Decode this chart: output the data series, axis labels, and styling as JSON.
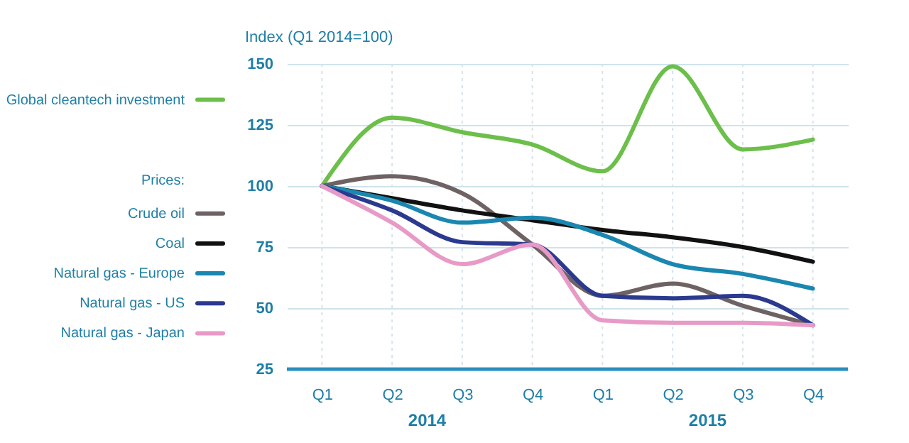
{
  "chart_data": {
    "type": "line",
    "ylabel": "Index (Q1 2014=100)",
    "legend_title": "Prices:",
    "categories": [
      "Q1",
      "Q2",
      "Q3",
      "Q4",
      "Q1",
      "Q2",
      "Q3",
      "Q4"
    ],
    "annotations": [
      "2014",
      "2015"
    ],
    "ylim": [
      25,
      150
    ],
    "yticks": [
      25,
      50,
      75,
      100,
      125,
      150
    ],
    "grid": true,
    "legend": "left",
    "line_style": "solid",
    "series": [
      {
        "name": "Global cleantech investment",
        "color": "#6cbf4a",
        "values": [
          100,
          128,
          122,
          117,
          106,
          149,
          115,
          119
        ]
      },
      {
        "name": "Crude oil",
        "color": "#6e6262",
        "values": [
          100,
          104,
          97,
          76,
          55,
          60,
          51,
          43
        ]
      },
      {
        "name": "Coal",
        "color": "#111111",
        "values": [
          100,
          95,
          90,
          86,
          82,
          79,
          75,
          69
        ]
      },
      {
        "name": "Natural gas - Europe",
        "color": "#1a87b0",
        "values": [
          100,
          94,
          85,
          87,
          80,
          68,
          64,
          58
        ]
      },
      {
        "name": "Natural gas - US",
        "color": "#2b3a8f",
        "values": [
          100,
          90,
          77,
          76,
          55,
          54,
          55,
          43
        ]
      },
      {
        "name": "Natural gas - Japan",
        "color": "#e89ac7",
        "values": [
          100,
          85,
          68,
          76,
          45,
          44,
          44,
          43
        ]
      }
    ]
  }
}
